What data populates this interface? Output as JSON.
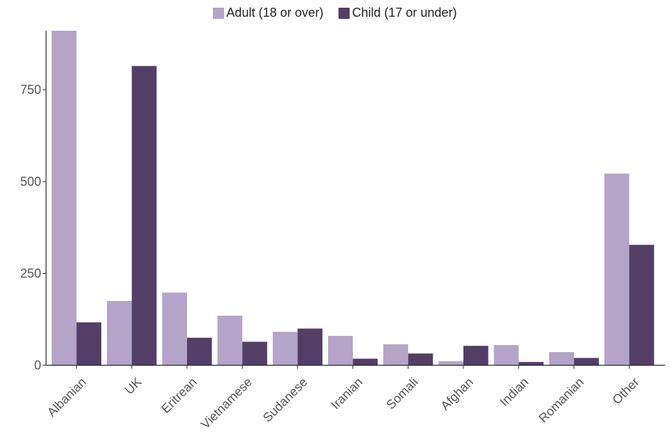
{
  "chart_data": {
    "type": "bar",
    "categories": [
      "Albanian",
      "UK",
      "Eritrean",
      "Vietnamese",
      "Sudanese",
      "Iranian",
      "Somali",
      "Afghan",
      "Indian",
      "Romanian",
      "Other"
    ],
    "series": [
      {
        "name": "Adult (18 or over)",
        "color": "#b4a4c8",
        "values": [
          911,
          175,
          198,
          135,
          91,
          80,
          57,
          11,
          55,
          36,
          522
        ]
      },
      {
        "name": "Child (17 or under)",
        "color": "#533f66",
        "values": [
          117,
          815,
          75,
          64,
          100,
          18,
          32,
          53,
          9,
          20,
          328
        ]
      }
    ],
    "yticks": [
      0,
      250,
      500,
      750
    ],
    "ylim": [
      0,
      911
    ],
    "grid": false,
    "legend_position": "top-center",
    "title": "",
    "xlabel": "",
    "ylabel": ""
  }
}
